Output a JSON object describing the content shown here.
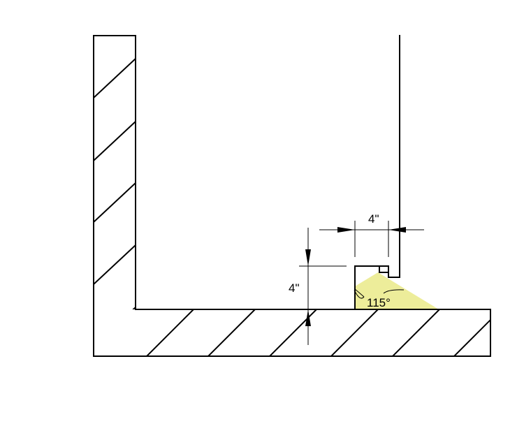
{
  "dimensions": {
    "horizontal_label": "4\"",
    "vertical_label": "4\"",
    "angle_label": "115°"
  },
  "colors": {
    "spray_fill": "#eded9a",
    "line": "#000000"
  }
}
